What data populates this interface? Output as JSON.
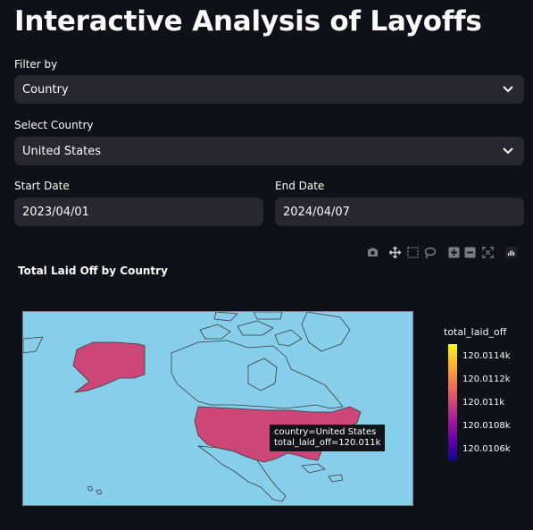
{
  "page": {
    "title": "Interactive Analysis of Layoffs"
  },
  "filters": {
    "filter_by_label": "Filter by",
    "filter_by_value": "Country",
    "select_country_label": "Select Country",
    "select_country_value": "United States",
    "start_date_label": "Start Date",
    "start_date_value": "2023/04/01",
    "end_date_label": "End Date",
    "end_date_value": "2024/04/07"
  },
  "toolbar": {
    "icons": [
      "camera-icon",
      "pan-icon",
      "box-select-icon",
      "lasso-icon",
      "zoom-in-icon",
      "zoom-out-icon",
      "autoscale-icon",
      "plotly-logo-icon"
    ]
  },
  "chart": {
    "title": "Total Laid Off by Country",
    "tooltip_line1": "country=United States",
    "tooltip_line2": "total_laid_off=120.011k",
    "colorbar_title": "total_laid_off",
    "colorbar_ticks": [
      "120.0114k",
      "120.0112k",
      "120.011k",
      "120.0108k",
      "120.0106k"
    ],
    "country_color": "#cc4778",
    "ocean_color": "#87ceeb"
  },
  "chart_data": {
    "type": "choropleth",
    "title": "Total Laid Off by Country",
    "locations": [
      "United States"
    ],
    "values": [
      120011
    ],
    "colorbar": {
      "title": "total_laid_off",
      "ticks": [
        "120.0114k",
        "120.0112k",
        "120.011k",
        "120.0108k",
        "120.0106k"
      ]
    }
  }
}
